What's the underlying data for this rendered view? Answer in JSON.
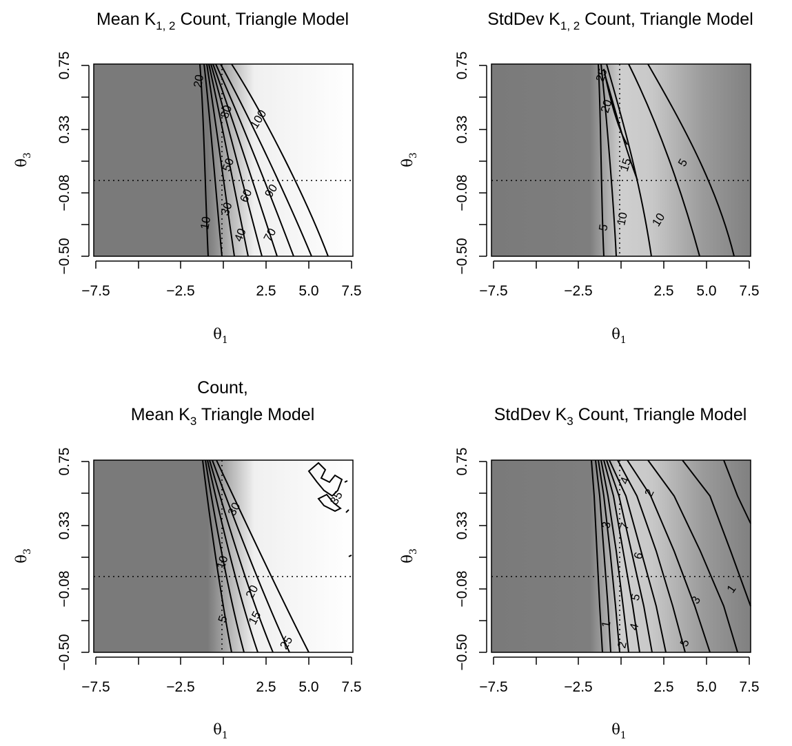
{
  "chart_data": [
    {
      "type": "heatmap",
      "panel": "top-left",
      "title": "Mean K",
      "title_sub": "1, 2",
      "title_rest": " Count, Triangle Model",
      "xlabel": "θ",
      "xlabel_sub": "1",
      "ylabel": "θ",
      "ylabel_sub": "3",
      "xlim": [
        -7.5,
        7.5
      ],
      "ylim": [
        -0.5,
        0.75
      ],
      "xticks": [
        -7.5,
        -5,
        -2.5,
        0,
        2.5,
        5,
        7.5
      ],
      "xtick_labels": [
        "−7.5",
        "",
        "−2.5",
        "",
        "2.5",
        "5.0",
        "7.5"
      ],
      "yticks": [
        -0.5,
        -0.29,
        -0.08,
        0.12,
        0.33,
        0.54,
        0.75
      ],
      "ytick_labels": [
        "−0.50",
        "",
        "−0.08",
        "",
        "0.33",
        "",
        "0.75"
      ],
      "reference_lines": {
        "x": 0,
        "y": 0
      },
      "color_scale": "dark-grey (low) to white (high)",
      "contour_labels": [
        "10",
        "20",
        "30",
        "40",
        "50",
        "60",
        "70",
        "80",
        "90",
        "100"
      ]
    },
    {
      "type": "heatmap",
      "panel": "top-right",
      "title": "StdDev K",
      "title_sub": "1, 2",
      "title_rest": " Count, Triangle Model",
      "xlabel": "θ",
      "xlabel_sub": "1",
      "ylabel": "θ",
      "ylabel_sub": "3",
      "xlim": [
        -7.5,
        7.5
      ],
      "ylim": [
        -0.5,
        0.75
      ],
      "xticks": [
        -7.5,
        -5,
        -2.5,
        0,
        2.5,
        5,
        7.5
      ],
      "xtick_labels": [
        "−7.5",
        "",
        "−2.5",
        "",
        "2.5",
        "5.0",
        "7.5"
      ],
      "yticks": [
        -0.5,
        -0.29,
        -0.08,
        0.12,
        0.33,
        0.54,
        0.75
      ],
      "ytick_labels": [
        "−0.50",
        "",
        "−0.08",
        "",
        "0.33",
        "",
        "0.75"
      ],
      "reference_lines": {
        "x": 0,
        "y": 0
      },
      "color_scale": "dark-grey (low) to light-grey (high)",
      "contour_labels": [
        "5",
        "10",
        "15",
        "20",
        "25",
        "5",
        "10"
      ]
    },
    {
      "type": "heatmap",
      "panel": "bottom-left",
      "title_line1": "Count,",
      "title": "Mean K",
      "title_sub": "3",
      "title_rest": " Triangle Model",
      "xlabel": "θ",
      "xlabel_sub": "1",
      "ylabel": "θ",
      "ylabel_sub": "3",
      "xlim": [
        -7.5,
        7.5
      ],
      "ylim": [
        -0.5,
        0.75
      ],
      "xticks": [
        -7.5,
        -5,
        -2.5,
        0,
        2.5,
        5,
        7.5
      ],
      "xtick_labels": [
        "−7.5",
        "",
        "−2.5",
        "",
        "2.5",
        "5.0",
        "7.5"
      ],
      "yticks": [
        -0.5,
        -0.29,
        -0.08,
        0.12,
        0.33,
        0.54,
        0.75
      ],
      "ytick_labels": [
        "−0.50",
        "",
        "−0.08",
        "",
        "0.33",
        "",
        "0.75"
      ],
      "reference_lines": {
        "x": 0,
        "y": 0
      },
      "color_scale": "dark-grey (low) to white (high)",
      "contour_labels": [
        "5",
        "10",
        "15",
        "20",
        "25",
        "30",
        "35"
      ]
    },
    {
      "type": "heatmap",
      "panel": "bottom-right",
      "title": "StdDev K",
      "title_sub": "3",
      "title_rest": " Count, Triangle Model",
      "xlabel": "θ",
      "xlabel_sub": "1",
      "ylabel": "θ",
      "ylabel_sub": "3",
      "xlim": [
        -7.5,
        7.5
      ],
      "ylim": [
        -0.5,
        0.75
      ],
      "xticks": [
        -7.5,
        -5,
        -2.5,
        0,
        2.5,
        5,
        7.5
      ],
      "xtick_labels": [
        "−7.5",
        "",
        "−2.5",
        "",
        "2.5",
        "5.0",
        "7.5"
      ],
      "yticks": [
        -0.5,
        -0.29,
        -0.08,
        0.12,
        0.33,
        0.54,
        0.75
      ],
      "ytick_labels": [
        "−0.50",
        "",
        "−0.08",
        "",
        "0.33",
        "",
        "0.75"
      ],
      "reference_lines": {
        "x": 0,
        "y": 0
      },
      "color_scale": "dark-grey (low) to light-grey (high)",
      "contour_labels": [
        "1",
        "2",
        "3",
        "4",
        "5",
        "6",
        "7",
        "4",
        "2",
        "1",
        "3",
        "5"
      ]
    }
  ]
}
